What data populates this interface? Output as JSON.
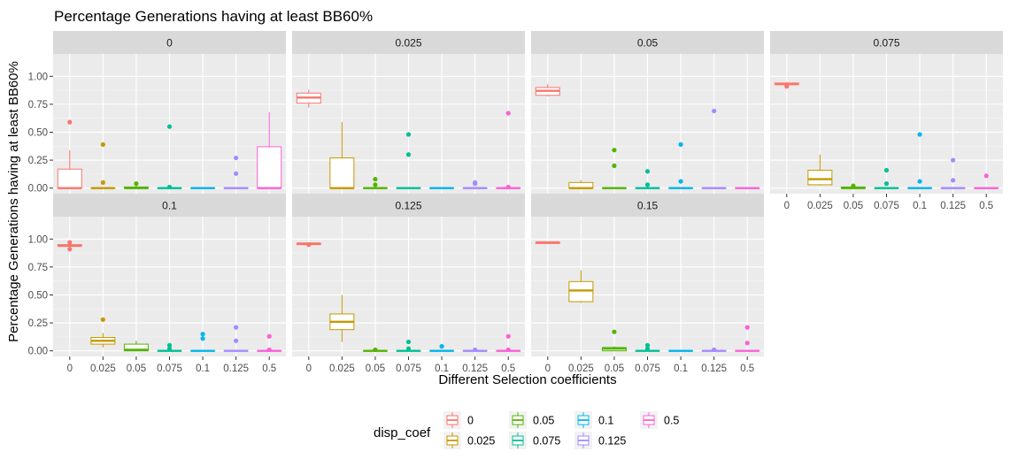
{
  "chart_data": {
    "type": "boxplot",
    "title": "Percentage Generations having at least BB60%",
    "xlabel": "Different Selection coefficients",
    "ylabel": "Percentage Generations having at least BB60%",
    "ylim": [
      -0.05,
      1.2
    ],
    "y_ticks": [
      "0.00",
      "0.25",
      "0.50",
      "0.75",
      "1.00"
    ],
    "y_tick_values": [
      0,
      0.25,
      0.5,
      0.75,
      1.0
    ],
    "categories": [
      "0",
      "0.025",
      "0.05",
      "0.075",
      "0.1",
      "0.125",
      "0.5"
    ],
    "legend": {
      "title": "disp_coef",
      "position": "bottom",
      "entries": [
        "0",
        "0.025",
        "0.05",
        "0.075",
        "0.1",
        "0.125",
        "0.5"
      ]
    },
    "colors": [
      "#F8766D",
      "#C49A00",
      "#53B400",
      "#00C094",
      "#00B6EB",
      "#A58AFF",
      "#FB61D7"
    ],
    "facets": [
      {
        "label": "0",
        "boxes": [
          {
            "min": 0,
            "q1": 0,
            "median": 0,
            "q3": 0.17,
            "max": 0.34,
            "outliers": [
              0.59
            ]
          },
          {
            "min": 0,
            "q1": 0,
            "median": 0,
            "q3": 0,
            "max": 0,
            "outliers": [
              0.05,
              0.39
            ]
          },
          {
            "min": 0,
            "q1": 0,
            "median": 0,
            "q3": 0.01,
            "max": 0.03,
            "outliers": [
              0.04
            ]
          },
          {
            "min": 0,
            "q1": 0,
            "median": 0,
            "q3": 0,
            "max": 0,
            "outliers": [
              0.01,
              0.55
            ]
          },
          {
            "min": 0,
            "q1": 0,
            "median": 0,
            "q3": 0,
            "max": 0,
            "outliers": []
          },
          {
            "min": 0,
            "q1": 0,
            "median": 0,
            "q3": 0,
            "max": 0,
            "outliers": [
              0.13,
              0.27
            ]
          },
          {
            "min": 0,
            "q1": 0,
            "median": 0,
            "q3": 0.37,
            "max": 0.68,
            "outliers": []
          }
        ]
      },
      {
        "label": "0.025",
        "boxes": [
          {
            "min": 0.72,
            "q1": 0.76,
            "median": 0.81,
            "q3": 0.85,
            "max": 0.88,
            "outliers": []
          },
          {
            "min": 0,
            "q1": 0,
            "median": 0,
            "q3": 0.27,
            "max": 0.59,
            "outliers": []
          },
          {
            "min": 0,
            "q1": 0,
            "median": 0,
            "q3": 0,
            "max": 0,
            "outliers": [
              0.03,
              0.08
            ]
          },
          {
            "min": 0,
            "q1": 0,
            "median": 0,
            "q3": 0,
            "max": 0,
            "outliers": [
              0.3,
              0.48
            ]
          },
          {
            "min": 0,
            "q1": 0,
            "median": 0,
            "q3": 0,
            "max": 0,
            "outliers": []
          },
          {
            "min": 0,
            "q1": 0,
            "median": 0,
            "q3": 0,
            "max": 0,
            "outliers": [
              0.04,
              0.05
            ]
          },
          {
            "min": 0,
            "q1": 0,
            "median": 0,
            "q3": 0,
            "max": 0,
            "outliers": [
              0.01,
              0.67
            ]
          }
        ]
      },
      {
        "label": "0.05",
        "boxes": [
          {
            "min": 0.82,
            "q1": 0.83,
            "median": 0.87,
            "q3": 0.9,
            "max": 0.93,
            "outliers": []
          },
          {
            "min": 0,
            "q1": 0,
            "median": 0,
            "q3": 0.05,
            "max": 0.07,
            "outliers": []
          },
          {
            "min": 0,
            "q1": 0,
            "median": 0,
            "q3": 0,
            "max": 0,
            "outliers": [
              0.2,
              0.34
            ]
          },
          {
            "min": 0,
            "q1": 0,
            "median": 0,
            "q3": 0,
            "max": 0,
            "outliers": [
              0.03,
              0.15
            ]
          },
          {
            "min": 0,
            "q1": 0,
            "median": 0,
            "q3": 0,
            "max": 0,
            "outliers": [
              0.06,
              0.39
            ]
          },
          {
            "min": 0,
            "q1": 0,
            "median": 0,
            "q3": 0,
            "max": 0,
            "outliers": [
              0.69
            ]
          },
          {
            "min": 0,
            "q1": 0,
            "median": 0,
            "q3": 0,
            "max": 0,
            "outliers": []
          }
        ]
      },
      {
        "label": "0.075",
        "boxes": [
          {
            "min": 0.92,
            "q1": 0.93,
            "median": 0.93,
            "q3": 0.94,
            "max": 0.95,
            "outliers": [
              0.91
            ]
          },
          {
            "min": 0.02,
            "q1": 0.03,
            "median": 0.08,
            "q3": 0.16,
            "max": 0.3,
            "outliers": []
          },
          {
            "min": 0,
            "q1": 0,
            "median": 0,
            "q3": 0.01,
            "max": 0.02,
            "outliers": [
              0.02
            ]
          },
          {
            "min": 0,
            "q1": 0,
            "median": 0,
            "q3": 0,
            "max": 0,
            "outliers": [
              0.04,
              0.16
            ]
          },
          {
            "min": 0,
            "q1": 0,
            "median": 0,
            "q3": 0,
            "max": 0,
            "outliers": [
              0.06,
              0.48
            ]
          },
          {
            "min": 0,
            "q1": 0,
            "median": 0,
            "q3": 0,
            "max": 0,
            "outliers": [
              0.07,
              0.25
            ]
          },
          {
            "min": 0,
            "q1": 0,
            "median": 0,
            "q3": 0,
            "max": 0,
            "outliers": [
              0.11
            ]
          }
        ]
      },
      {
        "label": "0.1",
        "boxes": [
          {
            "min": 0.94,
            "q1": 0.94,
            "median": 0.94,
            "q3": 0.95,
            "max": 0.95,
            "outliers": [
              0.91,
              0.97
            ]
          },
          {
            "min": 0.03,
            "q1": 0.06,
            "median": 0.09,
            "q3": 0.12,
            "max": 0.16,
            "outliers": [
              0.28
            ]
          },
          {
            "min": 0,
            "q1": 0,
            "median": 0.01,
            "q3": 0.06,
            "max": 0.09,
            "outliers": []
          },
          {
            "min": 0,
            "q1": 0,
            "median": 0,
            "q3": 0,
            "max": 0,
            "outliers": [
              0.02,
              0.05
            ]
          },
          {
            "min": 0,
            "q1": 0,
            "median": 0,
            "q3": 0,
            "max": 0,
            "outliers": [
              0.11,
              0.15
            ]
          },
          {
            "min": 0,
            "q1": 0,
            "median": 0,
            "q3": 0,
            "max": 0,
            "outliers": [
              0.09,
              0.21
            ]
          },
          {
            "min": 0,
            "q1": 0,
            "median": 0,
            "q3": 0,
            "max": 0,
            "outliers": [
              0.01,
              0.13
            ]
          }
        ]
      },
      {
        "label": "0.125",
        "boxes": [
          {
            "min": 0.94,
            "q1": 0.95,
            "median": 0.96,
            "q3": 0.96,
            "max": 0.97,
            "outliers": [
              0.95
            ]
          },
          {
            "min": 0.08,
            "q1": 0.19,
            "median": 0.26,
            "q3": 0.33,
            "max": 0.5,
            "outliers": []
          },
          {
            "min": 0,
            "q1": 0,
            "median": 0,
            "q3": 0,
            "max": 0,
            "outliers": [
              0.01
            ]
          },
          {
            "min": 0,
            "q1": 0,
            "median": 0,
            "q3": 0,
            "max": 0,
            "outliers": [
              0.02,
              0.08
            ]
          },
          {
            "min": 0,
            "q1": 0,
            "median": 0,
            "q3": 0,
            "max": 0,
            "outliers": [
              0.04
            ]
          },
          {
            "min": 0,
            "q1": 0,
            "median": 0,
            "q3": 0,
            "max": 0,
            "outliers": [
              0.01
            ]
          },
          {
            "min": 0,
            "q1": 0,
            "median": 0,
            "q3": 0,
            "max": 0,
            "outliers": [
              0.01,
              0.13
            ]
          }
        ]
      },
      {
        "label": "0.15",
        "boxes": [
          {
            "min": 0.96,
            "q1": 0.96,
            "median": 0.97,
            "q3": 0.97,
            "max": 0.97,
            "outliers": []
          },
          {
            "min": 0.43,
            "q1": 0.44,
            "median": 0.54,
            "q3": 0.62,
            "max": 0.72,
            "outliers": []
          },
          {
            "min": 0,
            "q1": 0,
            "median": 0.02,
            "q3": 0.03,
            "max": 0.04,
            "outliers": [
              0.17
            ]
          },
          {
            "min": 0,
            "q1": 0,
            "median": 0,
            "q3": 0,
            "max": 0,
            "outliers": [
              0.02,
              0.05
            ]
          },
          {
            "min": 0,
            "q1": 0,
            "median": 0,
            "q3": 0,
            "max": 0,
            "outliers": []
          },
          {
            "min": 0,
            "q1": 0,
            "median": 0,
            "q3": 0,
            "max": 0,
            "outliers": [
              0.01
            ]
          },
          {
            "min": 0,
            "q1": 0,
            "median": 0,
            "q3": 0,
            "max": 0,
            "outliers": [
              0.07,
              0.21
            ]
          }
        ]
      }
    ]
  }
}
